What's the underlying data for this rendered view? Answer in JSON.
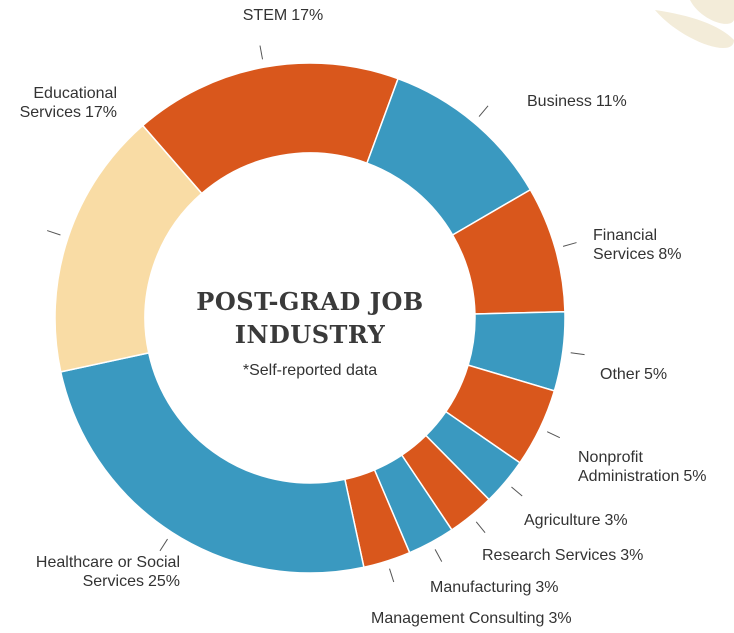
{
  "chart_data": {
    "type": "donut",
    "title": "POST-GRAD JOB INDUSTRY",
    "subtitle": "*Self-reported data",
    "categories": [
      "STEM",
      "Business",
      "Financial Services",
      "Other",
      "Nonprofit Administration",
      "Agriculture",
      "Research Services",
      "Manufacturing",
      "Management Consulting",
      "Healthcare or Social Services",
      "Educational Services"
    ],
    "values": [
      17,
      11,
      8,
      5,
      5,
      3,
      3,
      3,
      3,
      25,
      17
    ],
    "value_labels": [
      "17%",
      "11%",
      "8%",
      "5%",
      "5%",
      "3%",
      "3%",
      "3%",
      "3%",
      "25%",
      "17%"
    ],
    "colors": [
      "#d9571c",
      "#3a99c0",
      "#d9571c",
      "#3a99c0",
      "#d9571c",
      "#3a99c0",
      "#d9571c",
      "#3a99c0",
      "#d9571c",
      "#3a99c0",
      "#f9dca5"
    ]
  }
}
